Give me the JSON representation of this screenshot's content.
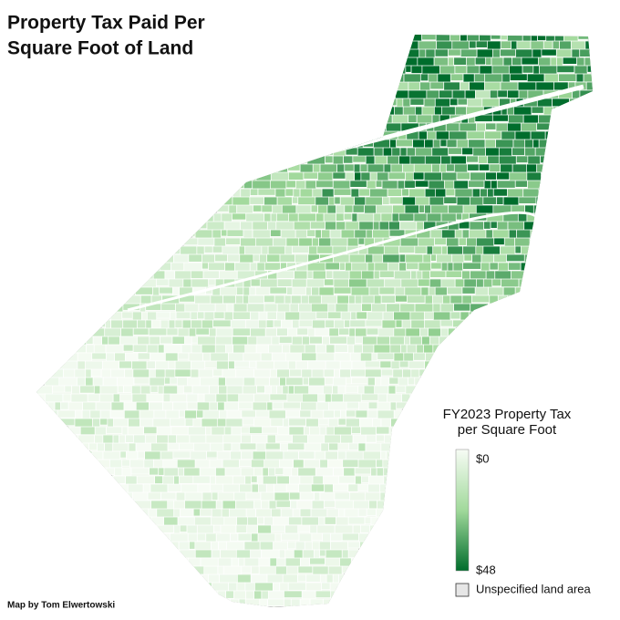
{
  "header": {
    "title_lines": [
      "Property Tax Paid Per",
      "Square Foot of Land"
    ]
  },
  "legend": {
    "title_lines": [
      "FY2023 Property Tax",
      "per Square Foot"
    ],
    "min_label": "$0",
    "max_label": "$48",
    "missing_label": "Unspecified land area"
  },
  "footer": {
    "credit": "Map by Tom Elwertowski"
  }
}
